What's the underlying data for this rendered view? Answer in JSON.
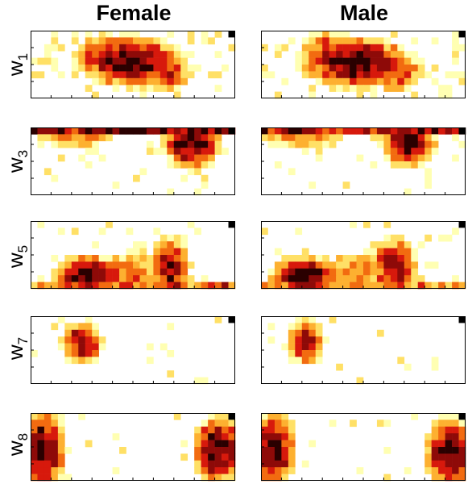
{
  "figure": {
    "columns": [
      {
        "key": "female",
        "title": "Female"
      },
      {
        "key": "male",
        "title": "Male"
      }
    ],
    "rows": [
      {
        "key": "w1",
        "label": "w",
        "sub": "1"
      },
      {
        "key": "w3",
        "label": "w",
        "sub": "3"
      },
      {
        "key": "w5",
        "label": "w",
        "sub": "5"
      },
      {
        "key": "w7",
        "label": "w",
        "sub": "7"
      },
      {
        "key": "w8",
        "label": "w",
        "sub": "8"
      }
    ]
  },
  "chart_data": {
    "type": "heatmap",
    "colormap": [
      "#ffffff",
      "#ffffb2",
      "#ffe066",
      "#fdb030",
      "#f26b10",
      "#d7190c",
      "#8e0a08",
      "#2a0000"
    ],
    "grid": {
      "cols": 30,
      "rows": 10
    },
    "title": "",
    "xlabel": "",
    "ylabel": "",
    "colorbar": false,
    "panels": [
      {
        "row": "w1",
        "column": "female",
        "blobs": [
          {
            "cx": 14.5,
            "cy": 4.5,
            "rx": 6.5,
            "ry": 3.2,
            "peak": 7
          },
          {
            "cx": 10.5,
            "cy": 4.0,
            "rx": 3.5,
            "ry": 3.0,
            "peak": 5
          },
          {
            "cx": 19.0,
            "cy": 6.0,
            "rx": 4.0,
            "ry": 2.5,
            "peak": 5
          }
        ],
        "base_noise": 0.18,
        "seed": 11
      },
      {
        "row": "w1",
        "column": "male",
        "blobs": [
          {
            "cx": 14.0,
            "cy": 4.8,
            "rx": 7.0,
            "ry": 3.2,
            "peak": 7
          },
          {
            "cx": 9.5,
            "cy": 3.5,
            "rx": 3.0,
            "ry": 3.0,
            "peak": 5
          },
          {
            "cx": 19.5,
            "cy": 6.0,
            "rx": 4.0,
            "ry": 2.5,
            "peak": 5
          }
        ],
        "base_noise": 0.16,
        "seed": 23
      },
      {
        "row": "w3",
        "column": "female",
        "band": {
          "y": 0,
          "level": 7
        },
        "blobs": [
          {
            "cx": 23.5,
            "cy": 2.2,
            "rx": 3.5,
            "ry": 3.5,
            "peak": 7
          },
          {
            "cx": 6.0,
            "cy": 1.5,
            "rx": 5.0,
            "ry": 1.2,
            "peak": 4
          }
        ],
        "base_noise": 0.1,
        "seed": 37
      },
      {
        "row": "w3",
        "column": "male",
        "band": {
          "y": 0,
          "level": 7
        },
        "blobs": [
          {
            "cx": 21.5,
            "cy": 2.0,
            "rx": 3.5,
            "ry": 3.2,
            "peak": 7
          },
          {
            "cx": 6.0,
            "cy": 1.5,
            "rx": 5.0,
            "ry": 1.2,
            "peak": 4
          }
        ],
        "base_noise": 0.09,
        "seed": 41
      },
      {
        "row": "w5",
        "column": "female",
        "band": {
          "y": 9,
          "level": 5
        },
        "blobs": [
          {
            "cx": 8.5,
            "cy": 8.0,
            "rx": 4.5,
            "ry": 2.5,
            "peak": 7
          },
          {
            "cx": 20.5,
            "cy": 7.0,
            "rx": 2.5,
            "ry": 4.0,
            "peak": 6
          },
          {
            "cx": 15.0,
            "cy": 7.5,
            "rx": 3.5,
            "ry": 2.5,
            "peak": 4
          }
        ],
        "base_noise": 0.1,
        "seed": 53
      },
      {
        "row": "w5",
        "column": "male",
        "band": {
          "y": 9,
          "level": 5
        },
        "blobs": [
          {
            "cx": 6.5,
            "cy": 8.0,
            "rx": 4.5,
            "ry": 2.5,
            "peak": 7
          },
          {
            "cx": 19.5,
            "cy": 7.0,
            "rx": 3.0,
            "ry": 4.0,
            "peak": 6
          },
          {
            "cx": 14.0,
            "cy": 7.5,
            "rx": 3.5,
            "ry": 2.5,
            "peak": 4
          }
        ],
        "base_noise": 0.1,
        "seed": 59
      },
      {
        "row": "w7",
        "column": "female",
        "blobs": [
          {
            "cx": 7.5,
            "cy": 3.8,
            "rx": 2.5,
            "ry": 2.8,
            "peak": 6
          }
        ],
        "base_noise": 0.04,
        "seed": 67
      },
      {
        "row": "w7",
        "column": "male",
        "blobs": [
          {
            "cx": 6.5,
            "cy": 3.8,
            "rx": 2.5,
            "ry": 2.8,
            "peak": 6
          }
        ],
        "base_noise": 0.04,
        "seed": 71
      },
      {
        "row": "w8",
        "column": "female",
        "blobs": [
          {
            "cx": 1.8,
            "cy": 5.5,
            "rx": 3.0,
            "ry": 4.8,
            "peak": 7
          },
          {
            "cx": 27.5,
            "cy": 5.5,
            "rx": 3.0,
            "ry": 4.5,
            "peak": 7
          }
        ],
        "base_noise": 0.04,
        "seed": 79
      },
      {
        "row": "w8",
        "column": "male",
        "blobs": [
          {
            "cx": 1.8,
            "cy": 5.5,
            "rx": 2.8,
            "ry": 4.8,
            "peak": 7
          },
          {
            "cx": 27.8,
            "cy": 6.0,
            "rx": 3.2,
            "ry": 4.5,
            "peak": 7
          }
        ],
        "base_noise": 0.04,
        "seed": 83
      }
    ]
  }
}
